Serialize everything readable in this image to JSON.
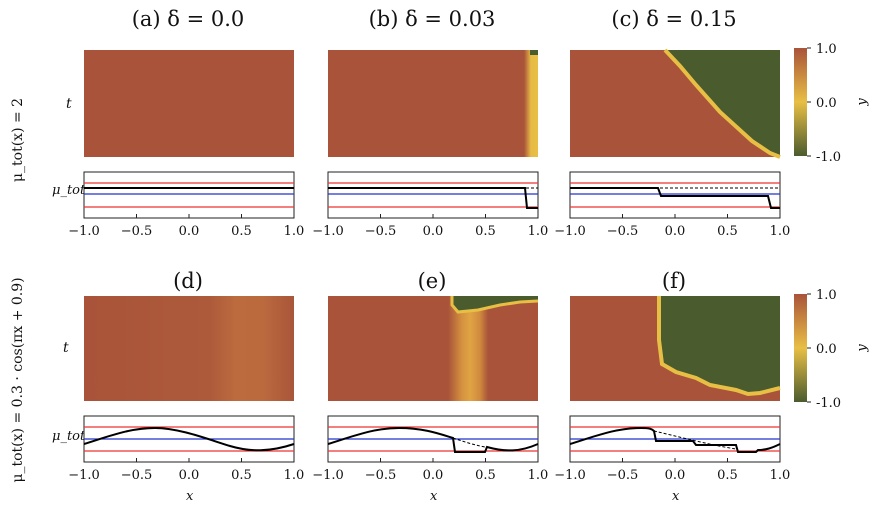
{
  "colors": {
    "positive": "#a9533a",
    "zero": "#e8bf45",
    "negative": "#4a5b2e",
    "mu_curve": "#000000",
    "mu_mean": "#2233cc",
    "mu_bounds": "#ee3333"
  },
  "row_labels": [
    "μ_tot(x) = 2",
    "μ_tot(x) = 0.3 · cos(πx + 0.9)"
  ],
  "t_label": "t",
  "mu_label": "μ_tot",
  "x_label": "x",
  "colorbar": {
    "label": "y",
    "ticks": [
      "1.0",
      "0.0",
      "-1.0"
    ]
  },
  "x_ticks": [
    "−1.0",
    "−0.5",
    "0.0",
    "0.5",
    "1.0"
  ],
  "chart_data": [
    {
      "type": "heatmap",
      "panel": "(a)",
      "delta": "0.0",
      "title": "(a)   δ = 0.0",
      "row": 1,
      "xlim": [
        -1,
        1
      ],
      "zlim": [
        -1,
        1
      ],
      "description_values": {
        "y_everywhere": 0.9
      },
      "mu": "constant",
      "mu_value": 2
    },
    {
      "type": "heatmap",
      "panel": "(b)",
      "delta": "0.03",
      "title": "(b)   δ = 0.03",
      "row": 1,
      "xlim": [
        -1,
        1
      ],
      "zlim": [
        -1,
        1
      ],
      "front_x_start": 0.93,
      "front_x_end": 0.93
    },
    {
      "type": "heatmap",
      "panel": "(c)",
      "delta": "0.15",
      "title": "(c)   δ = 0.15",
      "row": 1,
      "xlim": [
        -1,
        1
      ],
      "zlim": [
        -1,
        1
      ],
      "front_x_start": -0.1,
      "front_x_end": 0.9
    },
    {
      "type": "heatmap",
      "panel": "(d)",
      "delta": "0.0",
      "title": "(d)",
      "row": 2,
      "xlim": [
        -1,
        1
      ],
      "zlim": [
        -1,
        1
      ]
    },
    {
      "type": "heatmap",
      "panel": "(e)",
      "delta": "0.03",
      "title": "(e)",
      "row": 2,
      "xlim": [
        -1,
        1
      ],
      "zlim": [
        -1,
        1
      ]
    },
    {
      "type": "heatmap",
      "panel": "(f)",
      "delta": "0.15",
      "title": "(f)",
      "row": 2,
      "xlim": [
        -1,
        1
      ],
      "zlim": [
        -1,
        1
      ]
    }
  ]
}
